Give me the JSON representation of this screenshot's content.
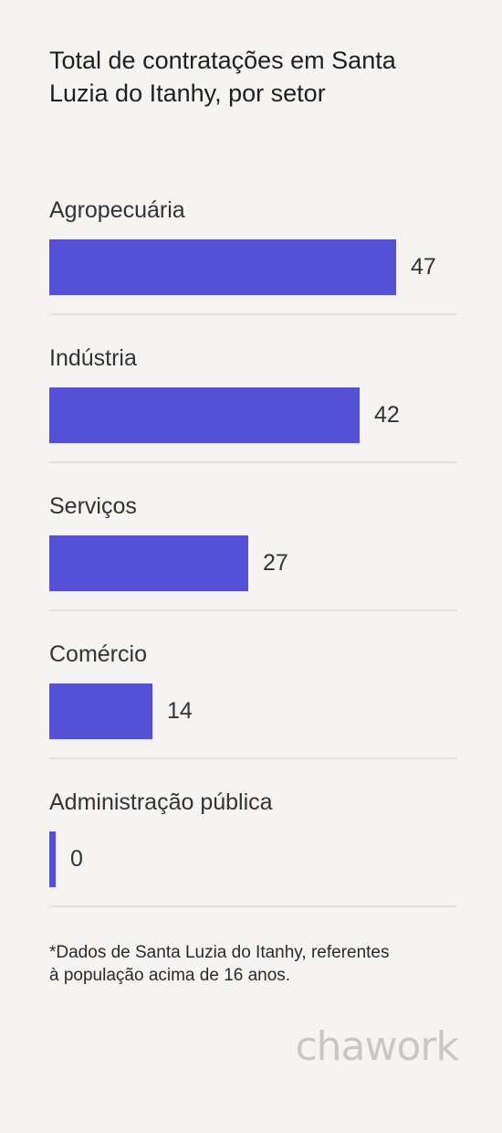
{
  "title": "Total de contratações em Santa Luzia do Itanhy, por setor",
  "chart_data": {
    "type": "bar",
    "orientation": "horizontal",
    "categories": [
      "Agropecuária",
      "Indústria",
      "Serviços",
      "Comércio",
      "Administração pública"
    ],
    "values": [
      47,
      42,
      27,
      14,
      0
    ],
    "title": "Total de contratações em Santa Luzia do Itanhy, por setor",
    "xlabel": "",
    "ylabel": "",
    "xlim": [
      0,
      50
    ],
    "grid": false,
    "bar_color": "#5551d6"
  },
  "footnote": {
    "line1": "*Dados de Santa Luzia do Itanhy, referentes",
    "line2": "à população acima de 16 anos."
  },
  "brand": "chawork"
}
